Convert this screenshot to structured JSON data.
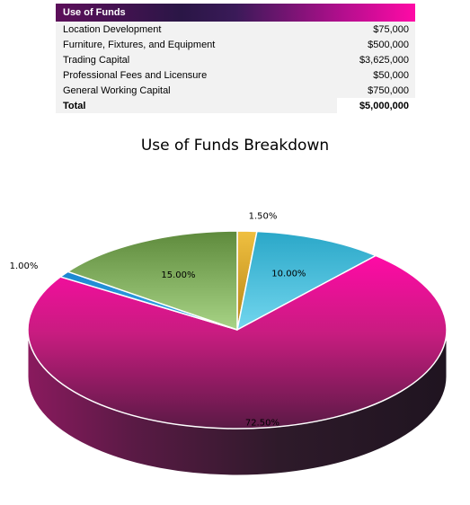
{
  "table": {
    "header": "Use of Funds",
    "rows": [
      {
        "label": "Location Development",
        "value": "$75,000"
      },
      {
        "label": "Furniture, Fixtures, and Equipment",
        "value": "$500,000"
      },
      {
        "label": "Trading Capital",
        "value": "$3,625,000"
      },
      {
        "label": "Professional Fees and Licensure",
        "value": "$50,000"
      },
      {
        "label": "General Working Capital",
        "value": "$750,000"
      }
    ],
    "total": {
      "label": "Total",
      "value": "$5,000,000"
    }
  },
  "chart_data": {
    "type": "pie",
    "title": "Use of Funds Breakdown",
    "categories": [
      "Location Development",
      "Furniture, Fixtures, and Equipment",
      "Trading Capital",
      "Professional Fees and Licensure",
      "General Working Capital"
    ],
    "values": [
      1.5,
      10.0,
      72.5,
      1.0,
      15.0
    ],
    "data_labels": [
      "1.50%",
      "10.00%",
      "72.50%",
      "1.00%",
      "15.00%"
    ],
    "colors": [
      "#d9a521",
      "#3db8d6",
      "#e8148c",
      "#1f8fd8",
      "#7aaa52"
    ],
    "style": "3d",
    "legend": "none"
  }
}
